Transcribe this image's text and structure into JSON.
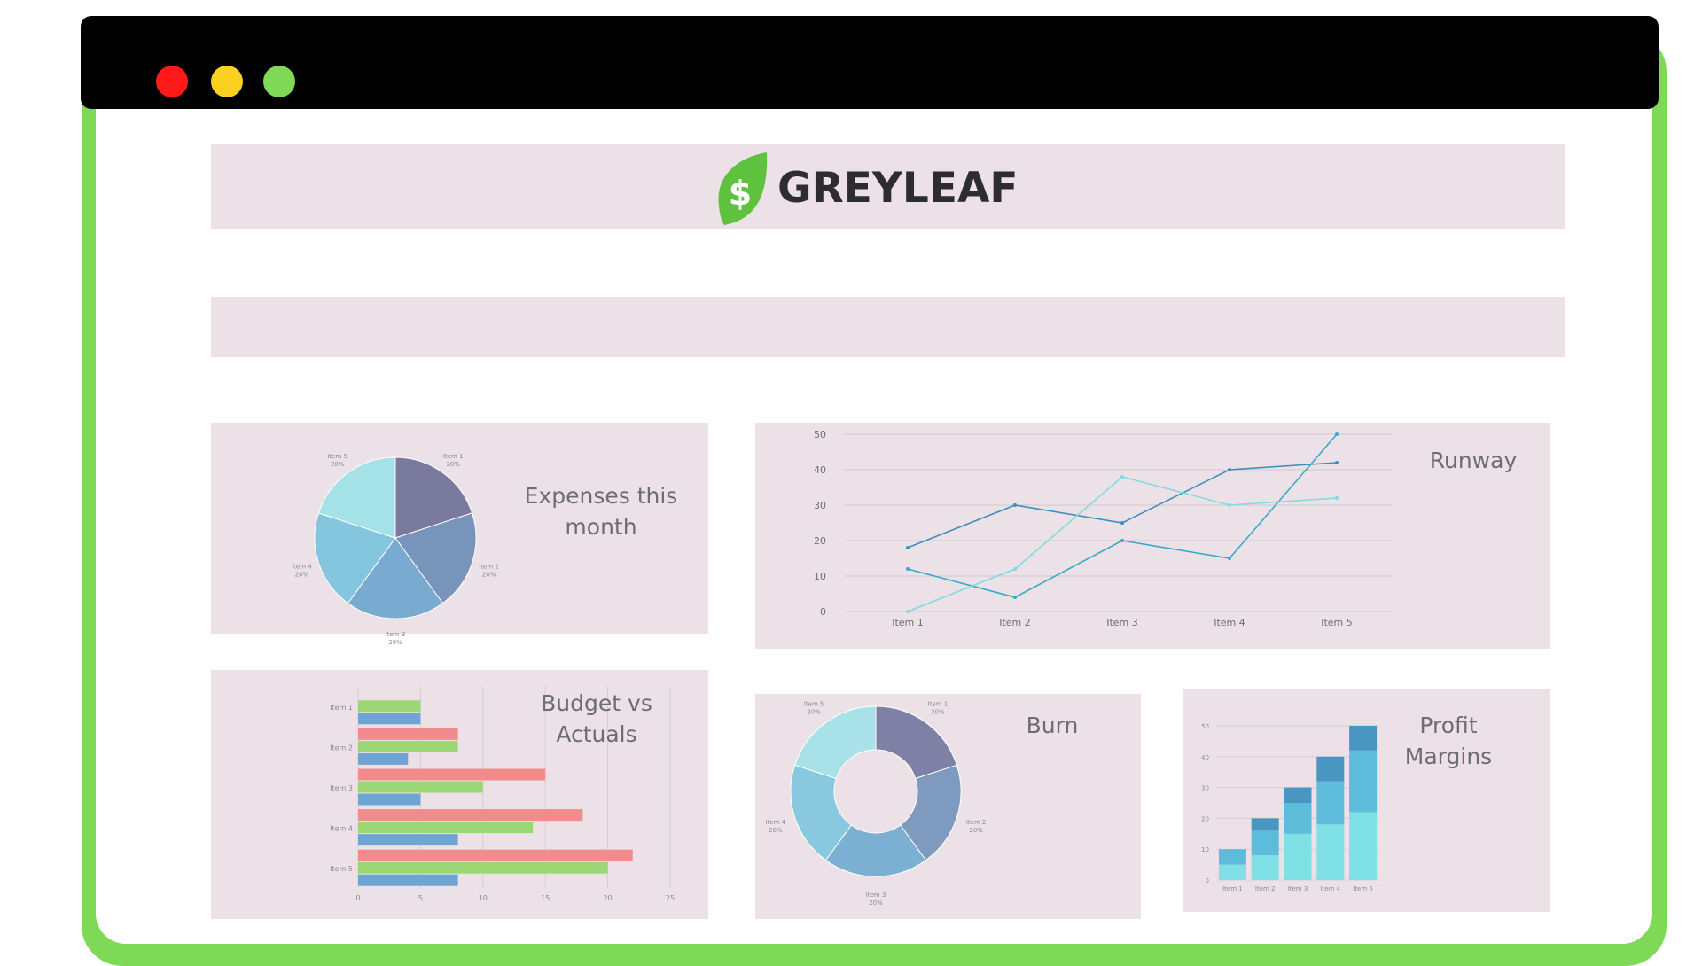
{
  "window": {
    "buttons": [
      {
        "name": "close",
        "color": "#ff1a1a"
      },
      {
        "name": "minimize",
        "color": "#fad021"
      },
      {
        "name": "maximize",
        "color": "#7ed957"
      }
    ]
  },
  "brand": {
    "name": "GREYLEAF",
    "logo_symbol": "$",
    "leaf_color": "#5fc23f"
  },
  "titles": {
    "expenses": "Expenses this month",
    "runway": "Runway",
    "budget": "Budget vs Actuals",
    "burn": "Burn",
    "profit": "Profit Margins"
  },
  "chart_data": [
    {
      "id": "expenses",
      "type": "pie",
      "categories": [
        "Item 1",
        "Item 2",
        "Item 3",
        "Item 4",
        "Item 5"
      ],
      "values": [
        20,
        20,
        20,
        20,
        20
      ],
      "labels": [
        "20%",
        "20%",
        "20%",
        "20%",
        "20%"
      ],
      "colors": [
        "#7a7a9f",
        "#7894bb",
        "#78abcf",
        "#84c6dd",
        "#a4e2e8"
      ]
    },
    {
      "id": "runway",
      "type": "line",
      "categories": [
        "Item 1",
        "Item 2",
        "Item 3",
        "Item 4",
        "Item 5"
      ],
      "ylim": [
        0,
        50
      ],
      "yticks": [
        0,
        10,
        20,
        30,
        40,
        50
      ],
      "series": [
        {
          "values": [
            18,
            30,
            25,
            40,
            42
          ],
          "color": "#3d8fbf"
        },
        {
          "values": [
            12,
            4,
            20,
            15,
            50
          ],
          "color": "#39a9cc"
        },
        {
          "values": [
            0,
            12,
            38,
            30,
            32
          ],
          "color": "#7fdbe3"
        }
      ]
    },
    {
      "id": "budget",
      "type": "bar",
      "orientation": "horizontal",
      "categories": [
        "Item 1",
        "Item 2",
        "Item 3",
        "Item 4",
        "Item 5"
      ],
      "xlim": [
        0,
        25
      ],
      "xticks": [
        0,
        5,
        10,
        15,
        20,
        25
      ],
      "series": [
        {
          "values": [
            0,
            8,
            15,
            18,
            22
          ],
          "color": "#f28b8b"
        },
        {
          "values": [
            5,
            8,
            10,
            14,
            20
          ],
          "color": "#9bd875"
        },
        {
          "values": [
            5,
            4,
            5,
            8,
            8
          ],
          "color": "#6fa5d2"
        }
      ]
    },
    {
      "id": "burn",
      "type": "pie",
      "donut": true,
      "categories": [
        "Item 1",
        "Item 2",
        "Item 3",
        "Item 4",
        "Item 5"
      ],
      "values": [
        20,
        20,
        20,
        20,
        20
      ],
      "labels": [
        "20%",
        "20%",
        "20%",
        "20%",
        "20%"
      ],
      "colors": [
        "#7e80a5",
        "#7f9abf",
        "#7bb0d3",
        "#89c8de",
        "#a8e2e8"
      ]
    },
    {
      "id": "profit",
      "type": "bar",
      "stacked": true,
      "categories": [
        "Item 1",
        "Item 2",
        "Item 3",
        "Item 4",
        "Item 5"
      ],
      "ylim": [
        0,
        50
      ],
      "yticks": [
        0,
        10,
        20,
        30,
        40,
        50
      ],
      "series": [
        {
          "values": [
            5,
            8,
            15,
            18,
            22
          ],
          "color": "#7fe0e6"
        },
        {
          "values": [
            5,
            8,
            10,
            14,
            20
          ],
          "color": "#5dbcd9"
        },
        {
          "values": [
            0,
            4,
            5,
            8,
            8
          ],
          "color": "#4a96c2"
        }
      ]
    }
  ]
}
